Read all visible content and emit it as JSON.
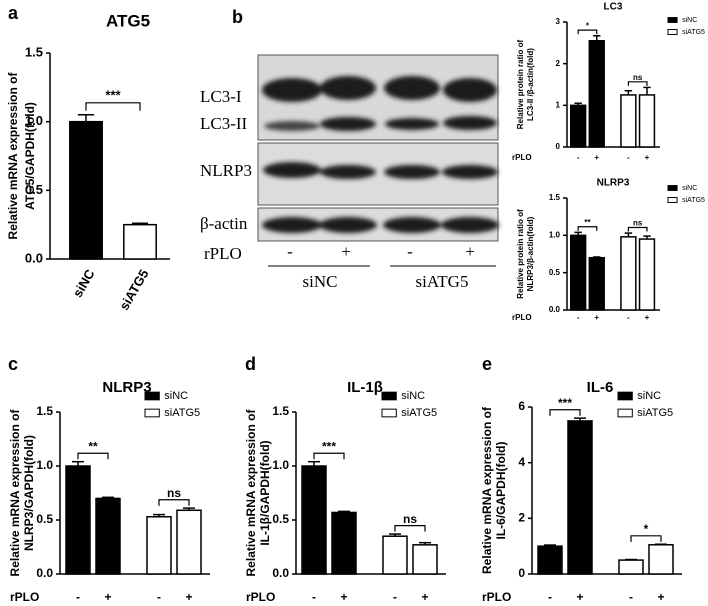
{
  "blot": {
    "panel": "b",
    "rows": [
      "LC3-I",
      "LC3-II",
      "NLRP3",
      "β-actin"
    ],
    "x_label": "rPLO",
    "lanes": [
      "-",
      "+",
      "-",
      "+"
    ],
    "groups": [
      "siNC",
      "siATG5"
    ]
  },
  "chart_data": [
    {
      "panel": "a",
      "type": "bar",
      "title": "ATG5",
      "y_label": [
        "Relative mRNA expression of",
        "ATG5/GAPDH(fold)"
      ],
      "categories": [
        "siNC",
        "siATG5"
      ],
      "values": [
        1.0,
        0.25
      ],
      "errors": [
        0.05,
        0.01
      ],
      "colors": [
        "#000000",
        "#ffffff"
      ],
      "ylim": [
        0,
        1.5
      ],
      "yticks": [
        {
          "value": 0,
          "label": "0.0"
        },
        0.5,
        {
          "value": 1,
          "label": "1.0"
        },
        1.5
      ],
      "annotations": [
        "***"
      ]
    },
    {
      "type": "grouped_bar",
      "title": "LC3",
      "y_label": [
        "Relative protein ratio of",
        "LC3-II /β-actin(fold)"
      ],
      "x_label": "rPLO",
      "categories": [
        "-",
        "+",
        "-",
        "+"
      ],
      "series": [
        {
          "name": "siNC",
          "color": "#000000",
          "values": [
            1.0,
            2.55,
            null,
            null
          ],
          "errors": [
            0.05,
            0.12,
            null,
            null
          ]
        },
        {
          "name": "siATG5",
          "color": "#ffffff",
          "values": [
            null,
            null,
            1.25,
            1.25
          ],
          "errors": [
            null,
            null,
            0.1,
            0.18
          ]
        }
      ],
      "ylim": [
        0,
        3
      ],
      "yticks": [
        0,
        1,
        2,
        3
      ],
      "annotations": [
        "*",
        "ns"
      ],
      "legend": "upper right"
    },
    {
      "type": "grouped_bar",
      "title": "NLRP3",
      "y_label": [
        "Relative protein ratio of",
        "NLRP3/β-actin(fold)"
      ],
      "x_label": "rPLO",
      "categories": [
        "-",
        "+",
        "-",
        "+"
      ],
      "series": [
        {
          "name": "siNC",
          "color": "#000000",
          "values": [
            1.0,
            0.7,
            null,
            null
          ],
          "errors": [
            0.04,
            0.01,
            null,
            null
          ]
        },
        {
          "name": "siATG5",
          "color": "#ffffff",
          "values": [
            null,
            null,
            0.98,
            0.95
          ],
          "errors": [
            null,
            null,
            0.05,
            0.04
          ]
        }
      ],
      "ylim": [
        0,
        1.5
      ],
      "yticks": [
        {
          "value": 0,
          "label": "0.0"
        },
        0.5,
        {
          "value": 1,
          "label": "1.0"
        },
        1.5
      ],
      "annotations": [
        "**",
        "ns"
      ],
      "legend": "upper right"
    },
    {
      "panel": "c",
      "type": "grouped_bar",
      "title": "NLRP3",
      "y_label": [
        "Relative mRNA expression of",
        "NLRP3/GAPDH(fold)"
      ],
      "x_label": "rPLO",
      "categories": [
        "-",
        "+",
        "-",
        "+"
      ],
      "series": [
        {
          "name": "siNC",
          "color": "#000000",
          "values": [
            1.0,
            0.7,
            null,
            null
          ],
          "errors": [
            0.04,
            0.01,
            null,
            null
          ]
        },
        {
          "name": "siATG5",
          "color": "#ffffff",
          "values": [
            null,
            null,
            0.53,
            0.59
          ],
          "errors": [
            null,
            null,
            0.02,
            0.02
          ]
        }
      ],
      "ylim": [
        0,
        1.5
      ],
      "yticks": [
        {
          "value": 0,
          "label": "0.0"
        },
        0.5,
        {
          "value": 1,
          "label": "1.0"
        },
        1.5
      ],
      "annotations": [
        "**",
        "ns"
      ],
      "legend": "upper right"
    },
    {
      "panel": "d",
      "type": "grouped_bar",
      "title": "IL-1β",
      "y_label": [
        "Relative mRNA expression of",
        "IL-1β/GAPDH(fold)"
      ],
      "x_label": "rPLO",
      "categories": [
        "-",
        "+",
        "-",
        "+"
      ],
      "series": [
        {
          "name": "siNC",
          "color": "#000000",
          "values": [
            1.0,
            0.57,
            null,
            null
          ],
          "errors": [
            0.04,
            0.01,
            null,
            null
          ]
        },
        {
          "name": "siATG5",
          "color": "#ffffff",
          "values": [
            null,
            null,
            0.35,
            0.27
          ],
          "errors": [
            null,
            null,
            0.02,
            0.02
          ]
        }
      ],
      "ylim": [
        0,
        1.5
      ],
      "yticks": [
        {
          "value": 0,
          "label": "0.0"
        },
        0.5,
        {
          "value": 1,
          "label": "1.0"
        },
        1.5
      ],
      "annotations": [
        "***",
        "ns"
      ],
      "legend": "upper right"
    },
    {
      "panel": "e",
      "type": "grouped_bar",
      "title": "IL-6",
      "y_label": [
        "Relative mRNA expression of",
        "IL-6/GAPDH(fold)"
      ],
      "x_label": "rPLO",
      "categories": [
        "-",
        "+",
        "-",
        "+"
      ],
      "series": [
        {
          "name": "siNC",
          "color": "#000000",
          "values": [
            1.0,
            5.5,
            null,
            null
          ],
          "errors": [
            0.04,
            0.1,
            null,
            null
          ]
        },
        {
          "name": "siATG5",
          "color": "#ffffff",
          "values": [
            null,
            null,
            0.5,
            1.05
          ],
          "errors": [
            null,
            null,
            0.02,
            0.02
          ]
        }
      ],
      "ylim": [
        0,
        6
      ],
      "yticks": [
        0,
        2,
        4,
        6
      ],
      "annotations": [
        "***",
        "*"
      ],
      "legend": "upper right"
    }
  ]
}
